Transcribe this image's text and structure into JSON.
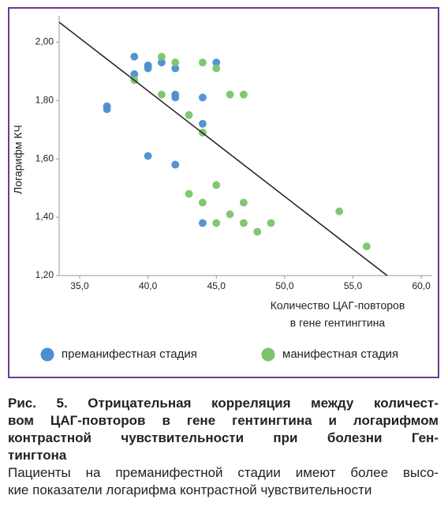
{
  "chart_data": {
    "type": "scatter",
    "xlabel": [
      "Количество ЦАГ-повторов",
      "в гене гентингтина"
    ],
    "ylabel": "Логарифм КЧ",
    "xlim": [
      33.5,
      60.8
    ],
    "ylim": [
      1.2,
      2.09
    ],
    "xticks": [
      {
        "value": 35,
        "label": "35,0"
      },
      {
        "value": 40,
        "label": "40,0"
      },
      {
        "value": 45,
        "label": "45,0"
      },
      {
        "value": 50,
        "label": "50,0"
      },
      {
        "value": 55,
        "label": "55,0"
      },
      {
        "value": 60,
        "label": "60,0"
      }
    ],
    "yticks": [
      {
        "value": 1.2,
        "label": "1,20"
      },
      {
        "value": 1.4,
        "label": "1,40"
      },
      {
        "value": 1.6,
        "label": "1,60"
      },
      {
        "value": 1.8,
        "label": "1,80"
      },
      {
        "value": 2.0,
        "label": "2,00"
      }
    ],
    "series": [
      {
        "name": "преманифестная стадия",
        "color": "#4a8fd0",
        "x": [
          37,
          37,
          39,
          39,
          40,
          40,
          41,
          42,
          42,
          42,
          44,
          44,
          45,
          40,
          42,
          44
        ],
        "y": [
          1.78,
          1.77,
          1.95,
          1.89,
          1.92,
          1.91,
          1.93,
          1.91,
          1.82,
          1.81,
          1.81,
          1.72,
          1.93,
          1.61,
          1.58,
          1.38
        ]
      },
      {
        "name": "манифестная стадия",
        "color": "#7cc36c",
        "x": [
          39,
          41,
          42,
          41,
          44,
          45,
          43,
          44,
          46,
          47,
          43,
          44,
          45,
          46,
          47,
          47,
          45,
          48,
          49,
          54,
          56
        ],
        "y": [
          1.87,
          1.95,
          1.93,
          1.82,
          1.93,
          1.91,
          1.75,
          1.69,
          1.82,
          1.82,
          1.48,
          1.45,
          1.51,
          1.41,
          1.45,
          1.38,
          1.38,
          1.35,
          1.38,
          1.42,
          1.3
        ]
      }
    ],
    "fit_line": {
      "x": [
        33.5,
        57.5
      ],
      "y": [
        2.068,
        1.2
      ]
    }
  },
  "caption": {
    "title": [
      "Рис. 5. Отрицательная корреляция между количест-",
      "вом ЦАГ-повторов в гене гентингтина и логарифмом",
      "контрастной чувствительности при болезни Ген-",
      "тингтона"
    ],
    "text": [
      "Пациенты на преманифестной стадии имеют более высо-",
      "кие показатели логарифма контрастной чувствительности"
    ]
  }
}
